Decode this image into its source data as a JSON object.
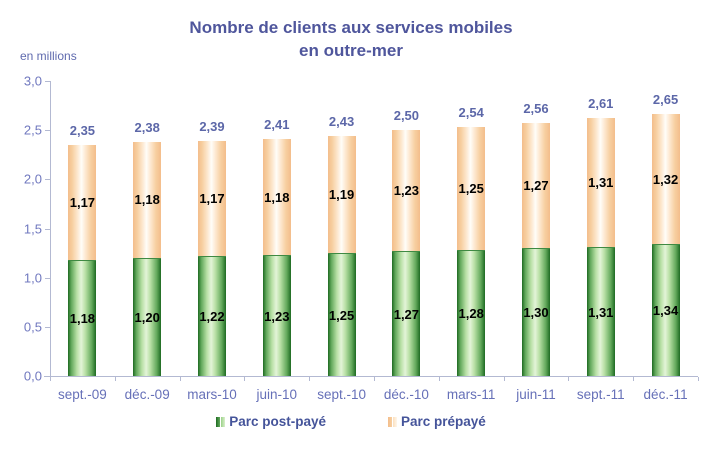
{
  "title": {
    "line1": "Nombre de clients aux services mobiles",
    "line2": "en outre-mer"
  },
  "unit_label": "en millions",
  "colors": {
    "title_text": "#4f569c",
    "axis_tick_text": "#7078bf",
    "category_text": "#6670b8",
    "total_label_text": "#5c67a8",
    "segment_label_text": "#000000",
    "legend_text": "#45549a",
    "axis_line": "#b3b9d2",
    "postpaid_green": "#2e7d32",
    "prepaid_peach": "#f5c89d"
  },
  "y_axis": {
    "tick_labels": [
      "3,0",
      "2,5",
      "2,0",
      "1,5",
      "1,0",
      "0,5",
      "0,0"
    ],
    "min": 0,
    "max": 3,
    "step": 0.5
  },
  "legend": {
    "items": [
      {
        "label": "Parc post-payé"
      },
      {
        "label": "Parc prépayé"
      }
    ]
  },
  "chart_data": {
    "type": "bar",
    "stacked": true,
    "title": "Nombre de clients aux services mobiles en outre-mer",
    "unit": "en millions",
    "categories": [
      "sept.-09",
      "déc.-09",
      "mars-10",
      "juin-10",
      "sept.-10",
      "déc.-10",
      "mars-11",
      "juin-11",
      "sept.-11",
      "déc.-11"
    ],
    "series": [
      {
        "name": "Parc post-payé",
        "position": "bottom",
        "color": "#2e7d32",
        "values": [
          1.18,
          1.2,
          1.22,
          1.23,
          1.25,
          1.27,
          1.28,
          1.3,
          1.31,
          1.34
        ],
        "labels": [
          "1,18",
          "1,20",
          "1,22",
          "1,23",
          "1,25",
          "1,27",
          "1,28",
          "1,30",
          "1,31",
          "1,34"
        ]
      },
      {
        "name": "Parc prépayé",
        "position": "top",
        "color": "#f5c89d",
        "values": [
          1.17,
          1.18,
          1.17,
          1.18,
          1.19,
          1.23,
          1.25,
          1.27,
          1.31,
          1.32
        ],
        "labels": [
          "1,17",
          "1,18",
          "1,17",
          "1,18",
          "1,19",
          "1,23",
          "1,25",
          "1,27",
          "1,31",
          "1,32"
        ]
      }
    ],
    "totals": {
      "values": [
        2.35,
        2.38,
        2.39,
        2.41,
        2.43,
        2.5,
        2.54,
        2.56,
        2.61,
        2.65
      ],
      "labels": [
        "2,35",
        "2,38",
        "2,39",
        "2,41",
        "2,43",
        "2,50",
        "2,54",
        "2,56",
        "2,61",
        "2,65"
      ]
    },
    "ylim": [
      0,
      3
    ],
    "grid": false,
    "legend_position": "bottom"
  }
}
